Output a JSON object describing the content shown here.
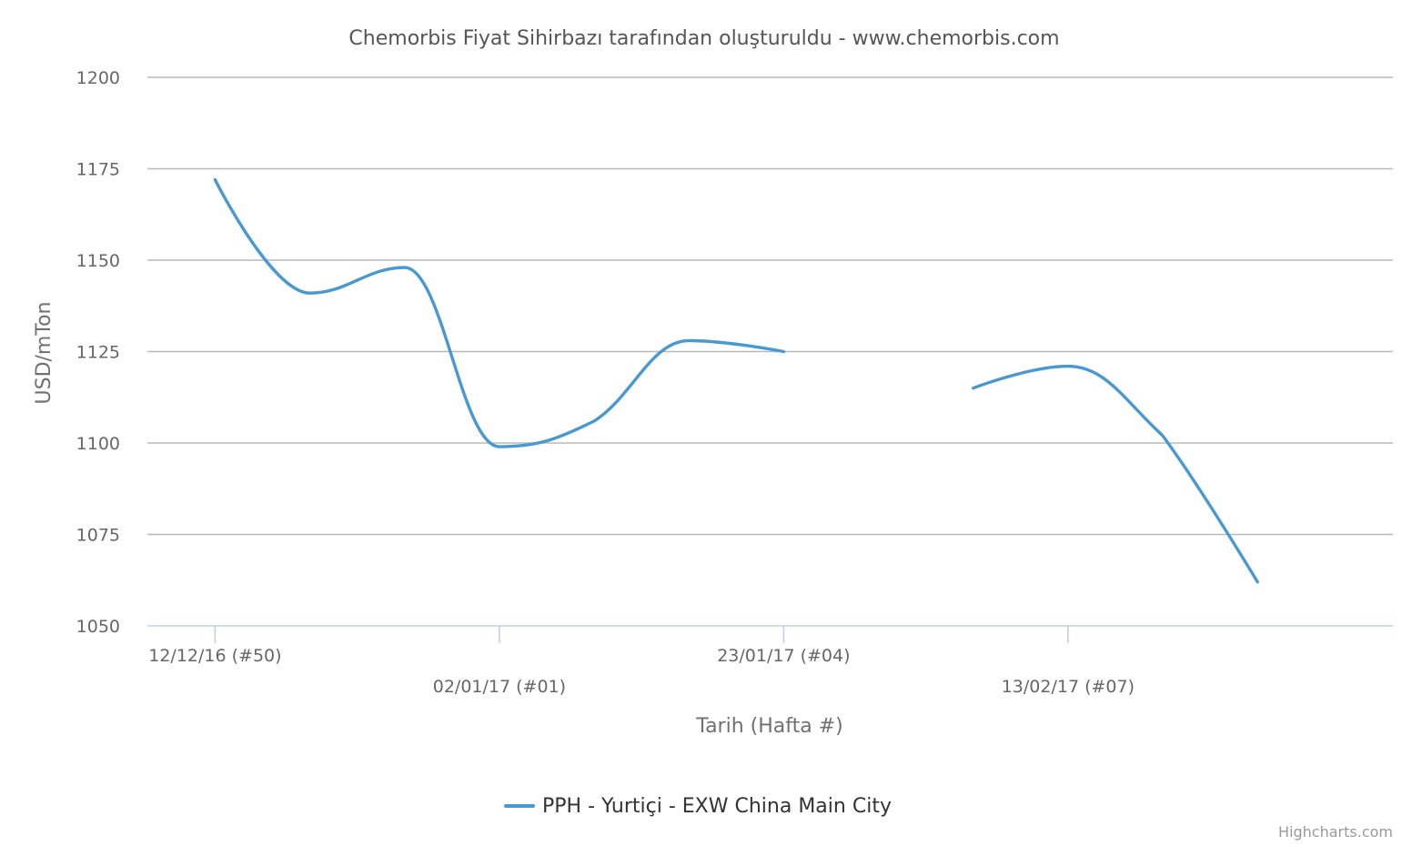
{
  "chart_data": {
    "type": "line",
    "title": "Chemorbis Fiyat Sihirbazı tarafından oluşturuldu - www.chemorbis.com",
    "xlabel": "Tarih (Hafta #)",
    "ylabel": "USD/mTon",
    "ylim": [
      1050,
      1200
    ],
    "yticks": [
      1050,
      1075,
      1100,
      1125,
      1150,
      1175,
      1200
    ],
    "xlim": [
      "2016-12-07",
      "2017-03-09"
    ],
    "xticks": [
      {
        "date": "2016-12-12",
        "label": "12/12/16 (#50)"
      },
      {
        "date": "2017-01-02",
        "label": "02/01/17 (#01)"
      },
      {
        "date": "2017-01-23",
        "label": "23/01/17 (#04)"
      },
      {
        "date": "2017-02-13",
        "label": "13/02/17 (#07)"
      }
    ],
    "grid": true,
    "legend_position": "bottom-center",
    "series": [
      {
        "name": "PPH - Yurtiçi - EXW China Main City",
        "color": "#4a98d0",
        "points": [
          {
            "x": "2016-12-12",
            "y": 1172
          },
          {
            "x": "2016-12-19",
            "y": 1141
          },
          {
            "x": "2016-12-26",
            "y": 1148
          },
          {
            "x": "2017-01-02",
            "y": 1099
          },
          {
            "x": "2017-01-09",
            "y": 1106
          },
          {
            "x": "2017-01-16",
            "y": 1128
          },
          {
            "x": "2017-01-23",
            "y": 1125
          },
          {
            "x": "2017-01-30",
            "y": null
          },
          {
            "x": "2017-02-06",
            "y": 1115
          },
          {
            "x": "2017-02-13",
            "y": 1121
          },
          {
            "x": "2017-02-20",
            "y": 1102
          },
          {
            "x": "2017-02-27",
            "y": 1062
          }
        ]
      }
    ]
  },
  "credits": "Highcharts.com"
}
